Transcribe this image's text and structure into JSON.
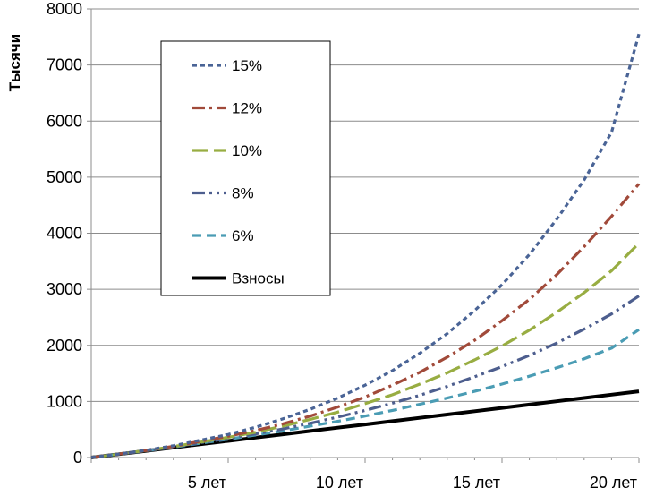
{
  "chart_data": {
    "type": "line",
    "ylabel": "Тысячи",
    "xlabel": "",
    "ylim": [
      0,
      8000
    ],
    "xlim": [
      0,
      20
    ],
    "yticks": [
      0,
      1000,
      2000,
      3000,
      4000,
      5000,
      6000,
      7000,
      8000
    ],
    "xticks": [
      {
        "x": 5,
        "label": "5 лет"
      },
      {
        "x": 10,
        "label": "10 лет"
      },
      {
        "x": 15,
        "label": "15 лет"
      },
      {
        "x": 20,
        "label": "20 лет"
      }
    ],
    "grid": "horizontal",
    "legend_position": "top-left",
    "x": [
      0,
      1,
      2,
      3,
      4,
      5,
      6,
      7,
      8,
      9,
      10,
      11,
      12,
      13,
      14,
      15,
      16,
      17,
      18,
      19,
      20
    ],
    "series": [
      {
        "name": "15%",
        "color": "#4a6496",
        "dash": "dotted",
        "values": [
          0,
          60,
          130,
          210,
          310,
          410,
          540,
          690,
          860,
          1060,
          1290,
          1550,
          1860,
          2210,
          2620,
          3080,
          3620,
          4250,
          4950,
          5800,
          7550
        ]
      },
      {
        "name": "12%",
        "color": "#a14a3a",
        "dash": "dashdot",
        "values": [
          0,
          60,
          125,
          200,
          290,
          380,
          480,
          600,
          740,
          900,
          1080,
          1290,
          1520,
          1790,
          2090,
          2440,
          2820,
          3260,
          3760,
          4300,
          4880
        ]
      },
      {
        "name": "10%",
        "color": "#98ad42",
        "dash": "longdash",
        "values": [
          0,
          60,
          125,
          195,
          275,
          360,
          450,
          560,
          680,
          810,
          960,
          1120,
          1310,
          1510,
          1740,
          1990,
          2270,
          2590,
          2940,
          3330,
          3820
        ]
      },
      {
        "name": "8%",
        "color": "#4d5e8e",
        "dash": "dashdotdot",
        "values": [
          0,
          60,
          120,
          190,
          265,
          340,
          420,
          510,
          610,
          720,
          840,
          970,
          1110,
          1270,
          1440,
          1620,
          1820,
          2040,
          2290,
          2560,
          2880
        ]
      },
      {
        "name": "6%",
        "color": "#4a9cb4",
        "dash": "dashed",
        "values": [
          0,
          60,
          120,
          185,
          255,
          325,
          400,
          475,
          560,
          645,
          740,
          840,
          950,
          1060,
          1180,
          1310,
          1450,
          1600,
          1760,
          1950,
          2280
        ]
      },
      {
        "name": "Взносы",
        "color": "#000000",
        "dash": "solid",
        "values": [
          0,
          59,
          118,
          177,
          236,
          295,
          354,
          413,
          472,
          531,
          590,
          649,
          708,
          767,
          826,
          885,
          944,
          1003,
          1062,
          1121,
          1180
        ]
      }
    ]
  }
}
